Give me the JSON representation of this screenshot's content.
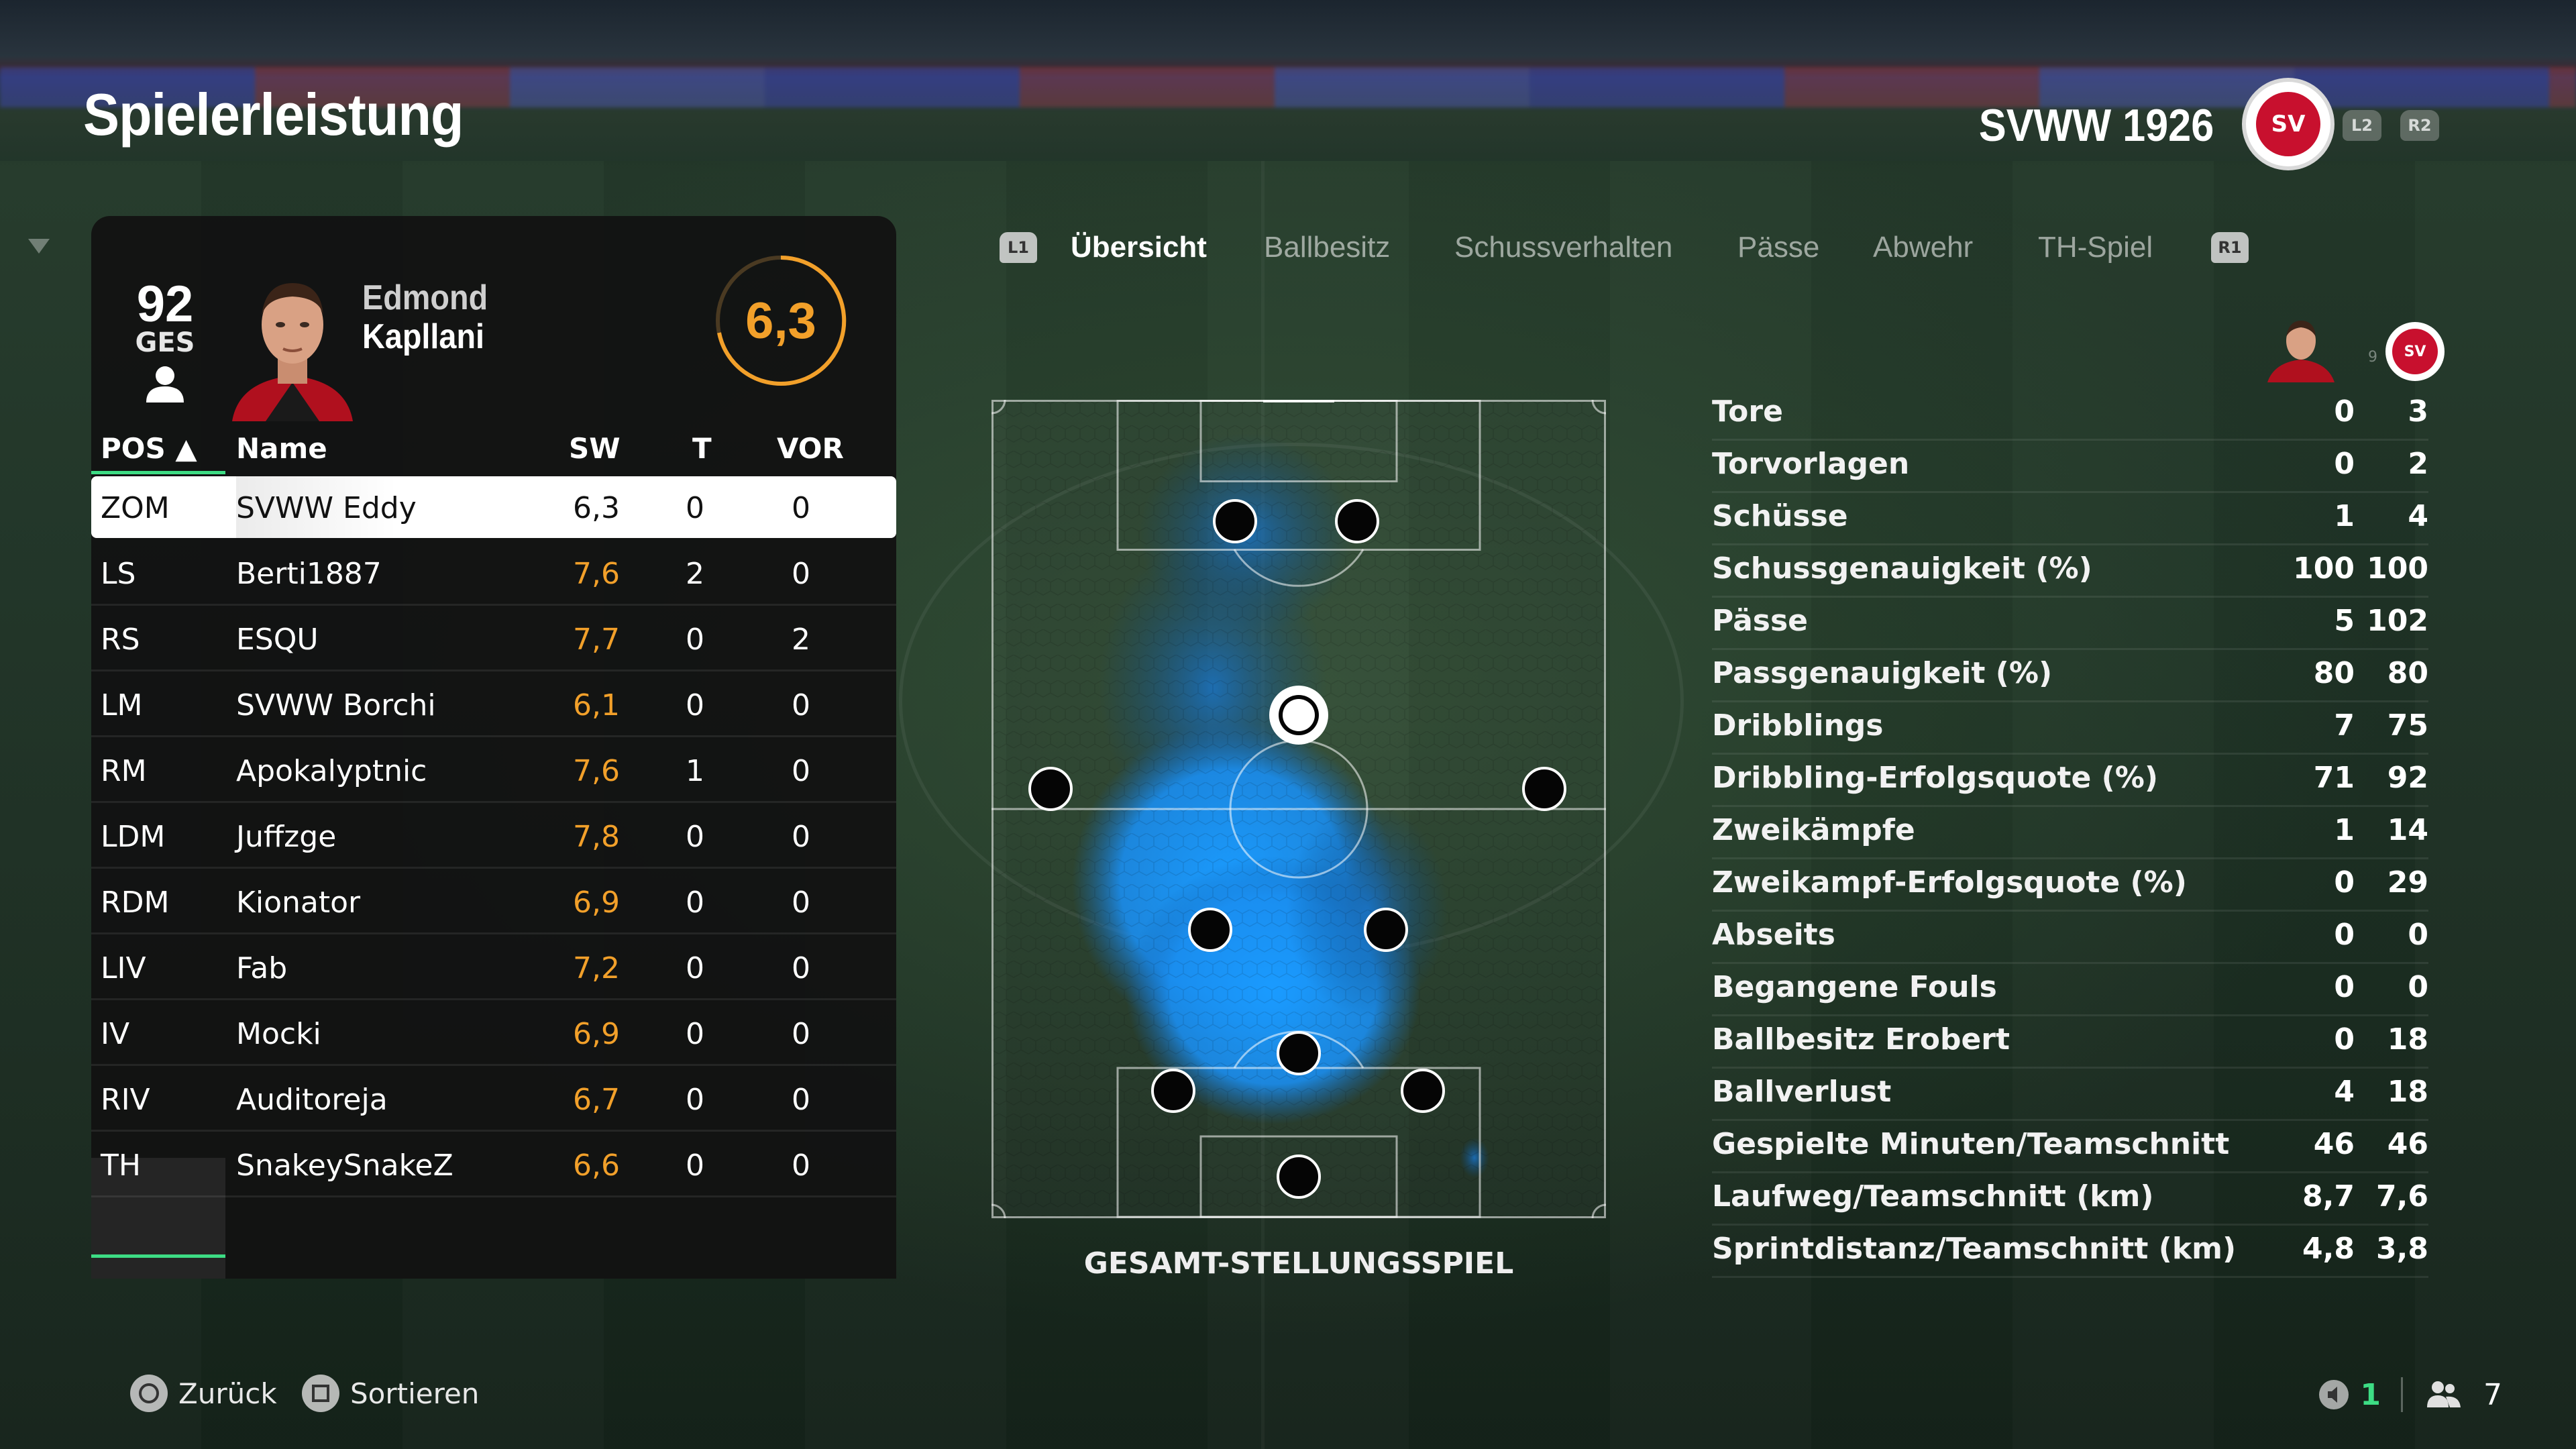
{
  "header": {
    "title": "Spielerleistung",
    "team_name": "SVWW 1926",
    "crest_text": "SV",
    "trigger_left": "L2",
    "trigger_right": "R2"
  },
  "player_card": {
    "overall": "92",
    "overall_label": "GES",
    "first_name": "Edmond",
    "last_name": "Kapllani",
    "rating": "6,3"
  },
  "table": {
    "headers": {
      "pos": "POS ▲",
      "name": "Name",
      "sw": "SW",
      "t": "T",
      "vor": "VOR"
    },
    "rows": [
      {
        "pos": "ZOM",
        "name": "SVWW Eddy",
        "sw": "6,3",
        "t": "0",
        "vor": "0"
      },
      {
        "pos": "LS",
        "name": "Berti1887",
        "sw": "7,6",
        "t": "2",
        "vor": "0"
      },
      {
        "pos": "RS",
        "name": "ESQU",
        "sw": "7,7",
        "t": "0",
        "vor": "2"
      },
      {
        "pos": "LM",
        "name": "SVWW Borchi",
        "sw": "6,1",
        "t": "0",
        "vor": "0"
      },
      {
        "pos": "RM",
        "name": "Apokalyptnic",
        "sw": "7,6",
        "t": "1",
        "vor": "0"
      },
      {
        "pos": "LDM",
        "name": "Juffzge",
        "sw": "7,8",
        "t": "0",
        "vor": "0"
      },
      {
        "pos": "RDM",
        "name": "Kionator",
        "sw": "6,9",
        "t": "0",
        "vor": "0"
      },
      {
        "pos": "LIV",
        "name": "Fab",
        "sw": "7,2",
        "t": "0",
        "vor": "0"
      },
      {
        "pos": "IV",
        "name": "Mocki",
        "sw": "6,9",
        "t": "0",
        "vor": "0"
      },
      {
        "pos": "RIV",
        "name": "Auditoreja",
        "sw": "6,7",
        "t": "0",
        "vor": "0"
      },
      {
        "pos": "TH",
        "name": "SnakeySnakeZ",
        "sw": "6,6",
        "t": "0",
        "vor": "0"
      }
    ]
  },
  "tabs": {
    "left_bumper": "L1",
    "right_bumper": "R1",
    "items": [
      "Übersicht",
      "Ballbesitz",
      "Schussverhalten",
      "Pässe",
      "Abwehr",
      "TH-Spiel"
    ],
    "active": "Übersicht"
  },
  "field": {
    "caption": "GESAMT-STELLUNGSSPIEL"
  },
  "stats": {
    "player_number": "9",
    "rows": [
      {
        "label": "Tore",
        "player": "0",
        "team": "3"
      },
      {
        "label": "Torvorlagen",
        "player": "0",
        "team": "2"
      },
      {
        "label": "Schüsse",
        "player": "1",
        "team": "4"
      },
      {
        "label": "Schussgenauigkeit (%)",
        "player": "100",
        "team": "100"
      },
      {
        "label": "Pässe",
        "player": "5",
        "team": "102"
      },
      {
        "label": "Passgenauigkeit (%)",
        "player": "80",
        "team": "80"
      },
      {
        "label": "Dribblings",
        "player": "7",
        "team": "75"
      },
      {
        "label": "Dribbling-Erfolgsquote (%)",
        "player": "71",
        "team": "92"
      },
      {
        "label": "Zweikämpfe",
        "player": "1",
        "team": "14"
      },
      {
        "label": "Zweikampf-Erfolgsquote (%)",
        "player": "0",
        "team": "29"
      },
      {
        "label": "Abseits",
        "player": "0",
        "team": "0"
      },
      {
        "label": "Begangene Fouls",
        "player": "0",
        "team": "0"
      },
      {
        "label": "Ballbesitz Erobert",
        "player": "0",
        "team": "18"
      },
      {
        "label": "Ballverlust",
        "player": "4",
        "team": "18"
      },
      {
        "label": "Gespielte Minuten/Teamschnitt",
        "player": "46",
        "team": "46"
      },
      {
        "label": "Laufweg/Teamschnitt (km)",
        "player": "8,7",
        "team": "7,6"
      },
      {
        "label": "Sprintdistanz/Teamschnitt (km)",
        "player": "4,8",
        "team": "3,8"
      }
    ]
  },
  "footer": {
    "back_label": "Zurück",
    "sort_label": "Sortieren",
    "status_green": "1",
    "status_count": "7"
  },
  "colors": {
    "accent_green": "#3ddc84",
    "rating_orange": "#f2a02a",
    "heat_blue": "#1e90ff"
  }
}
